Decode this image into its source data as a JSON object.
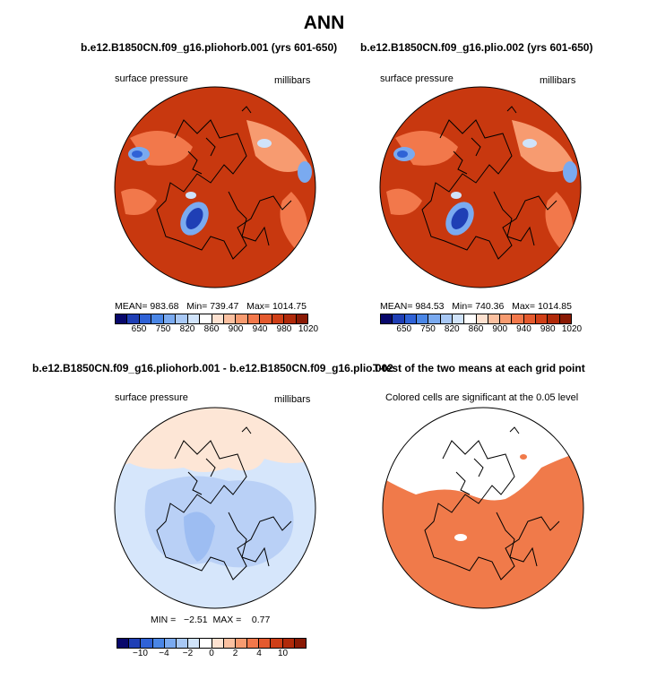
{
  "title": "ANN",
  "panels": [
    {
      "title": "b.e12.B1850CN.f09_g16.pliohorb.001 (yrs 601-650)",
      "left_label": "surface pressure",
      "right_label": "millibars",
      "stats": "MEAN= 983.68   Min= 739.47   Max= 1014.75",
      "colorbar_ticks": [
        "650",
        "750",
        "820",
        "860",
        "900",
        "940",
        "980",
        "1020"
      ]
    },
    {
      "title": "b.e12.B1850CN.f09_g16.plio.002 (yrs 601-650)",
      "left_label": "surface pressure",
      "right_label": "millibars",
      "stats": "MEAN= 984.53   Min= 740.36   Max= 1014.85",
      "colorbar_ticks": [
        "650",
        "750",
        "820",
        "860",
        "900",
        "940",
        "980",
        "1020"
      ]
    },
    {
      "title": "b.e12.B1850CN.f09_g16.pliohorb.001 - b.e12.B1850CN.f09_g16.plio.002",
      "left_label": "surface pressure",
      "right_label": "millibars",
      "stats": "MIN =   −2.51  MAX =    0.77",
      "colorbar_ticks": [
        "−10",
        "−4",
        "−2",
        "0",
        "2",
        "4",
        "10"
      ]
    },
    {
      "title": "T-test of the two means at each grid point",
      "subtitle": "Colored cells are significant at the 0.05 level"
    }
  ],
  "colors": {
    "colorbar_scale": [
      "#08086b",
      "#1f3fb5",
      "#2f62d6",
      "#4a86e6",
      "#7aaaf0",
      "#a8c8f5",
      "#d0e3fa",
      "#ffffff",
      "#fde1d0",
      "#fbc0a0",
      "#f79b70",
      "#f2784b",
      "#e45a2e",
      "#cf3f17",
      "#b02a0a",
      "#8a1a05"
    ],
    "dominant_pressure": "#c8380f",
    "diff_light": "#d6e6fb",
    "diff_medium": "#b9d0f6",
    "diff_positive": "#fde6d6",
    "significant": "#f07a4a"
  }
}
